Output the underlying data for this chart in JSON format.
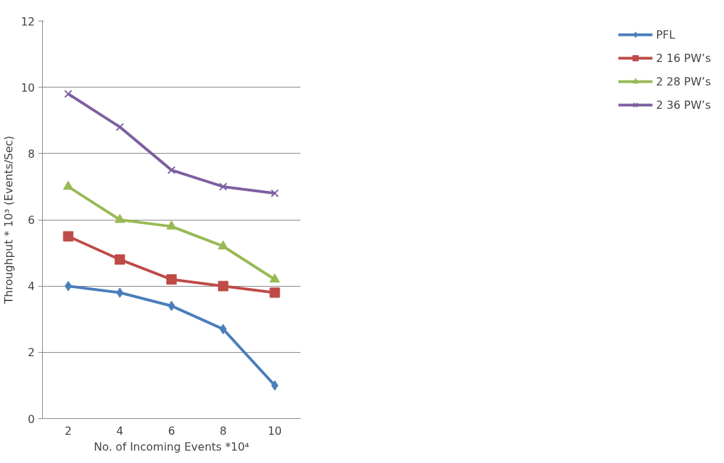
{
  "chart_data": {
    "type": "line",
    "xlabel": "No. of Incoming Events *10⁴",
    "ylabel": "Throughput * 10³ (Events/Sec)",
    "categories": [
      "2",
      "4",
      "6",
      "8",
      "10"
    ],
    "ylim": [
      0,
      12
    ],
    "yticks": [
      0,
      2,
      4,
      6,
      8,
      10,
      12
    ],
    "grid": "y",
    "legend": "right",
    "series": [
      {
        "name": "PFL",
        "color": "#4a7ebb",
        "marker": "diamond",
        "values": [
          4.0,
          3.8,
          3.4,
          2.7,
          1.0
        ]
      },
      {
        "name": "2 16 PW’s",
        "color": "#be4b48",
        "marker": "square",
        "values": [
          5.5,
          4.8,
          4.2,
          4.0,
          3.8
        ]
      },
      {
        "name": "2 28 PW’s",
        "color": "#98b954",
        "marker": "triangle",
        "values": [
          7.0,
          6.0,
          5.8,
          5.2,
          4.2
        ]
      },
      {
        "name": "2 36 PW’s",
        "color": "#7d60a0",
        "marker": "cross",
        "values": [
          9.8,
          8.8,
          7.5,
          7.0,
          6.8
        ]
      }
    ]
  }
}
